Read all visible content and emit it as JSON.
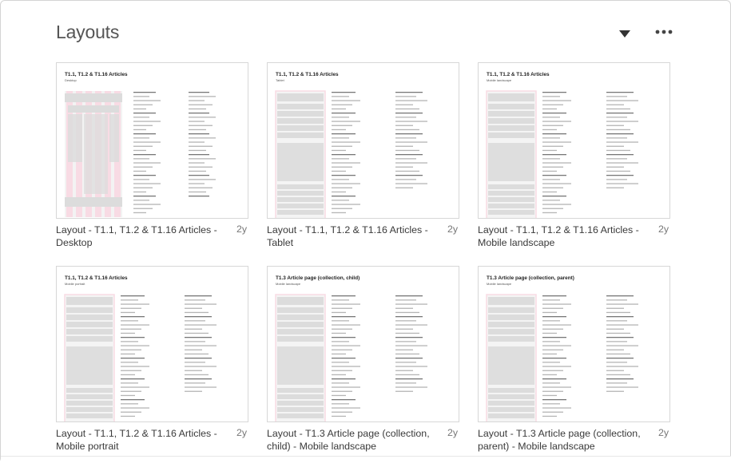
{
  "section": {
    "title": "Layouts"
  },
  "toolbar": {
    "collapse_icon": "chevron-down-icon",
    "more_icon": "more-horizontal-icon"
  },
  "colors": {
    "grid_pink": "#f8dbe4",
    "block_gray": "#dcdcdc",
    "text_dark": "#3a3a3a"
  },
  "layouts": [
    {
      "thumb_title": "T1.1, T1.2 & T1.16 Articles",
      "thumb_subtitle": "Desktop",
      "caption": "Layout - T1.1, T1.2 & T1.16 Articles - Desktop",
      "age": "2y"
    },
    {
      "thumb_title": "T1.1, T1.2 & T1.16 Articles",
      "thumb_subtitle": "Tablet",
      "caption": "Layout - T1.1, T1.2 & T1.16 Articles - Tablet",
      "age": "2y"
    },
    {
      "thumb_title": "T1.1, T1.2 & T1.16 Articles",
      "thumb_subtitle": "Mobile landscape",
      "caption": "Layout - T1.1, T1.2 & T1.16 Articles - Mobile landscape",
      "age": "2y"
    },
    {
      "thumb_title": "T1.1, T1.2 & T1.16 Articles",
      "thumb_subtitle": "Mobile portrait",
      "caption": "Layout - T1.1, T1.2 & T1.16 Articles - Mobile portrait",
      "age": "2y"
    },
    {
      "thumb_title": "T1.3 Article page (collection, child)",
      "thumb_subtitle": "Mobile landscape",
      "caption": "Layout - T1.3 Article page (collection, child) - Mobile landscape",
      "age": "2y"
    },
    {
      "thumb_title": "T1.3 Article page (collection, parent)",
      "thumb_subtitle": "Mobile landscape",
      "caption": "Layout - T1.3 Article page (collection, parent) - Mobile landscape",
      "age": "2y"
    }
  ]
}
